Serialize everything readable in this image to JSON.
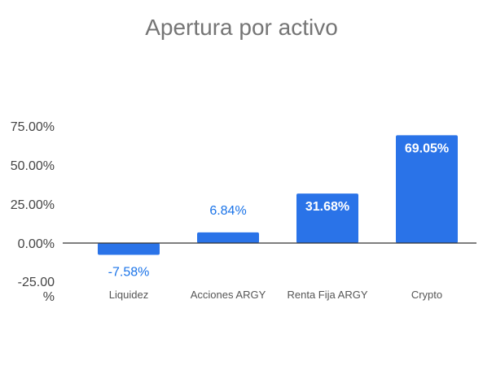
{
  "chart_data": {
    "type": "bar",
    "title": "Apertura por activo",
    "xlabel": "",
    "ylabel": "",
    "categories": [
      "Liquidez",
      "Acciones ARGY",
      "Renta Fija ARGY",
      "Crypto"
    ],
    "values": [
      -7.58,
      6.84,
      31.68,
      69.05
    ],
    "value_labels": [
      "-7.58%",
      "6.84%",
      "31.68%",
      "69.05%"
    ],
    "y_ticks": [
      75,
      50,
      25,
      0,
      -25
    ],
    "y_tick_labels": [
      "75.00%",
      "50.00%",
      "25.00%",
      "0.00%",
      "-25.00 %"
    ],
    "ylim": [
      -25,
      75
    ],
    "grid": false,
    "legend": "none",
    "colors": {
      "bar": "#2a73e8",
      "zero_line": "#333333",
      "title": "#757575"
    }
  }
}
